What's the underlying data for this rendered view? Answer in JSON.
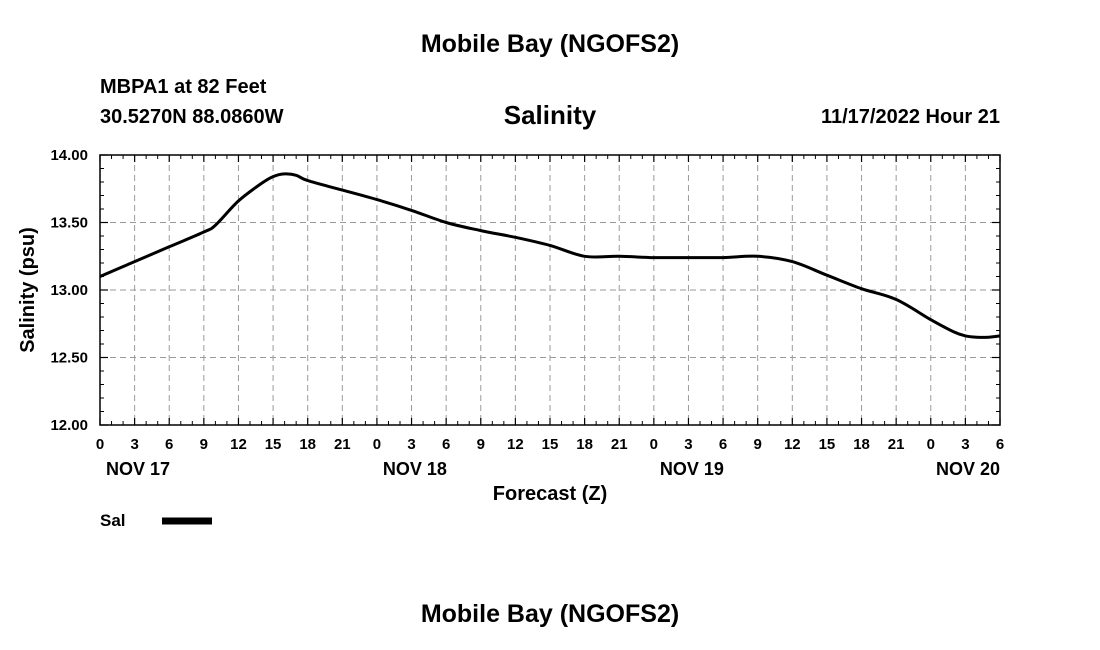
{
  "header": {
    "title": "Mobile Bay (NGOFS2)",
    "station": "MBPA1 at 82 Feet",
    "coords": "30.5270N  88.0860W",
    "timestamp": "11/17/2022 Hour 21",
    "footer_title": "Mobile Bay (NGOFS2)"
  },
  "chart_data": {
    "type": "line",
    "title": "Salinity",
    "xlabel": "Forecast (Z)",
    "ylabel": "Salinity (psu)",
    "ylim": [
      12.0,
      14.0
    ],
    "xlim": [
      0,
      78
    ],
    "x_unit": "hours since NOV 17 00Z",
    "x_tick_labels": [
      "0",
      "3",
      "6",
      "9",
      "12",
      "15",
      "18",
      "21",
      "0",
      "3",
      "6",
      "9",
      "12",
      "15",
      "18",
      "21",
      "0",
      "3",
      "6",
      "9",
      "12",
      "15",
      "18",
      "21",
      "0",
      "3",
      "6"
    ],
    "date_labels": [
      {
        "hour": 0,
        "label": "NOV 17"
      },
      {
        "hour": 24,
        "label": "NOV 18"
      },
      {
        "hour": 48,
        "label": "NOV 19"
      },
      {
        "hour": 72,
        "label": "NOV 20"
      }
    ],
    "y_tick_labels": [
      "12.00",
      "12.50",
      "13.00",
      "13.50",
      "14.00"
    ],
    "grid": true,
    "legend": {
      "position": "bottom-left",
      "label": "Sal",
      "color": "#000000"
    },
    "series": [
      {
        "name": "Sal",
        "x": [
          0,
          3,
          6,
          9,
          10,
          12,
          14,
          15,
          16,
          17,
          18,
          21,
          24,
          27,
          30,
          33,
          36,
          39,
          42,
          45,
          48,
          51,
          54,
          57,
          60,
          63,
          66,
          69,
          72,
          74,
          75,
          76,
          77,
          78
        ],
        "y": [
          13.1,
          13.21,
          13.32,
          13.43,
          13.48,
          13.66,
          13.79,
          13.84,
          13.86,
          13.85,
          13.81,
          13.74,
          13.67,
          13.59,
          13.5,
          13.44,
          13.39,
          13.33,
          13.25,
          13.25,
          13.24,
          13.24,
          13.24,
          13.25,
          13.21,
          13.11,
          13.01,
          12.93,
          12.78,
          12.69,
          12.66,
          12.65,
          12.65,
          12.66
        ]
      }
    ]
  }
}
